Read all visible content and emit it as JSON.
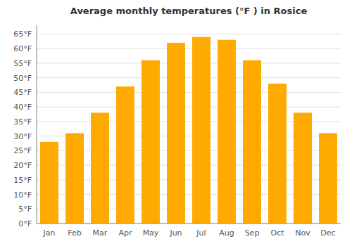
{
  "chart_data": {
    "type": "bar",
    "title": "Average monthly temperatures (°F ) in Rosice",
    "categories": [
      "Jan",
      "Feb",
      "Mar",
      "Apr",
      "May",
      "Jun",
      "Jul",
      "Aug",
      "Sep",
      "Oct",
      "Nov",
      "Dec"
    ],
    "values": [
      28,
      31,
      38,
      47,
      56,
      62,
      64,
      63,
      56,
      48,
      38,
      31
    ],
    "color": "#FFAA00",
    "ylim": [
      0,
      68
    ],
    "yticks": [
      {
        "value": 0,
        "label": "0°F"
      },
      {
        "value": 5,
        "label": "5°F"
      },
      {
        "value": 10,
        "label": "10°F"
      },
      {
        "value": 15,
        "label": "15°F"
      },
      {
        "value": 20,
        "label": "20°F"
      },
      {
        "value": 25,
        "label": "25°F"
      },
      {
        "value": 30,
        "label": "30°F"
      },
      {
        "value": 35,
        "label": "35°F"
      },
      {
        "value": 40,
        "label": "40°F"
      },
      {
        "value": 45,
        "label": "45°F"
      },
      {
        "value": 50,
        "label": "50°F"
      },
      {
        "value": 55,
        "label": "55°F"
      },
      {
        "value": 60,
        "label": "60°F"
      },
      {
        "value": 65,
        "label": "65°F"
      }
    ],
    "grid": true
  }
}
